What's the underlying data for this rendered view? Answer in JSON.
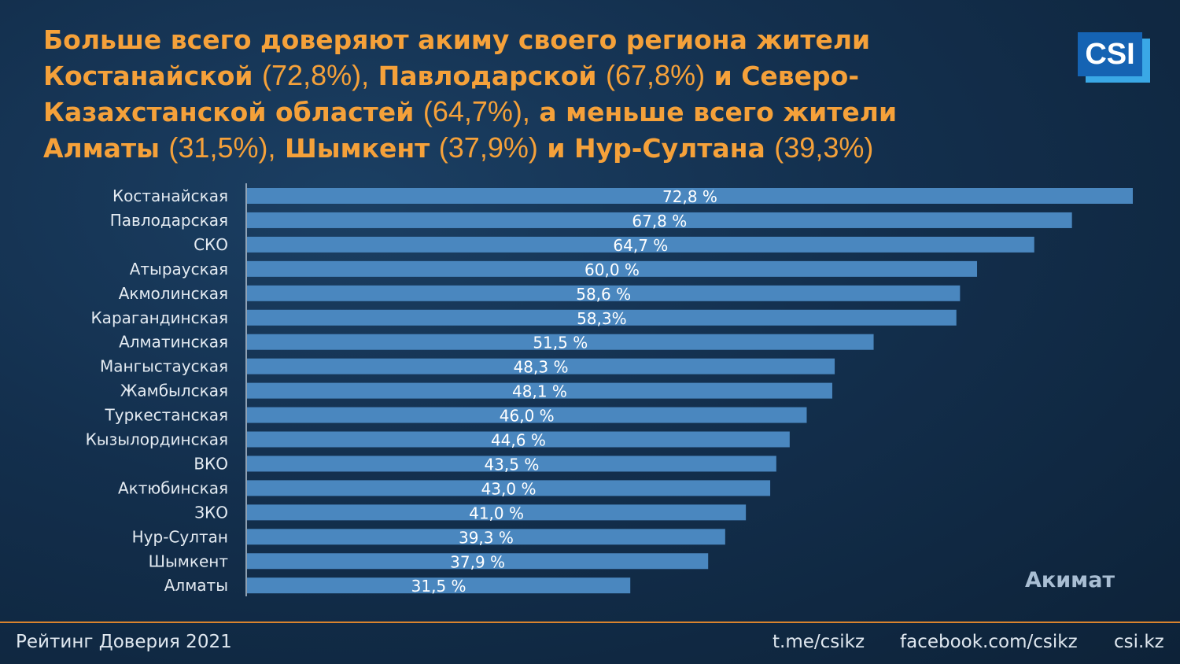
{
  "headline": {
    "line1": "Больше всего доверяют акиму своего региона жители",
    "l2_bold_a": "Костанайской",
    "l2_pct_a": "(72,8%),",
    "l2_bold_b": "Павлодарской",
    "l2_pct_b": "(67,8%)",
    "l2_bold_c": "и Северо-",
    "l3_bold_a": "Казахстанской областей",
    "l3_pct_a": "(64,7%),",
    "l3_bold_b": "а меньше всего жители",
    "l4_bold_a": "Алматы",
    "l4_pct_a": "(31,5%),",
    "l4_bold_b": "Шымкент",
    "l4_pct_b": "(37,9%)",
    "l4_bold_c": "и Нур-Султана",
    "l4_pct_c": "(39,3%)"
  },
  "logo": {
    "text": "CSI"
  },
  "footer": {
    "left": "Рейтинг Доверия 2021",
    "telegram": "t.me/csikz",
    "facebook": "facebook.com/csikz",
    "site": "csi.kz"
  },
  "colors": {
    "bar": "#4a87bf",
    "headline": "#f5a13a",
    "accent_line": "#d9832e",
    "background": "#132f4d"
  },
  "chart_data": {
    "type": "bar",
    "orientation": "horizontal",
    "categories": [
      "Костанайская",
      "Павлодарская",
      "СКО",
      "Атырауская",
      "Акмолинская",
      "Карагандинская",
      "Алматинская",
      "Мангыстауская",
      "Жамбылская",
      "Туркестанская",
      "Кызылординская",
      "ВКО",
      "Актюбинская",
      "ЗКО",
      "Нур-Султан",
      "Шымкент",
      "Алматы"
    ],
    "series": [
      {
        "name": "Акимат",
        "values": [
          72.8,
          67.8,
          64.7,
          60.0,
          58.6,
          58.3,
          51.5,
          48.3,
          48.1,
          46.0,
          44.6,
          43.5,
          43.0,
          41.0,
          39.3,
          37.9,
          31.5
        ],
        "labels": [
          "72,8 %",
          "67,8 %",
          "64,7 %",
          "60,0 %",
          "58,6 %",
          "58,3%",
          "51,5 %",
          "48,3 %",
          "48,1 %",
          "46,0 %",
          "44,6 %",
          "43,5 %",
          "43,0 %",
          "41,0 %",
          "39,3 %",
          "37,9 %",
          "31,5 %"
        ]
      }
    ],
    "xlim": [
      0,
      72.8
    ],
    "grid": false,
    "legend": "bottom-right"
  }
}
